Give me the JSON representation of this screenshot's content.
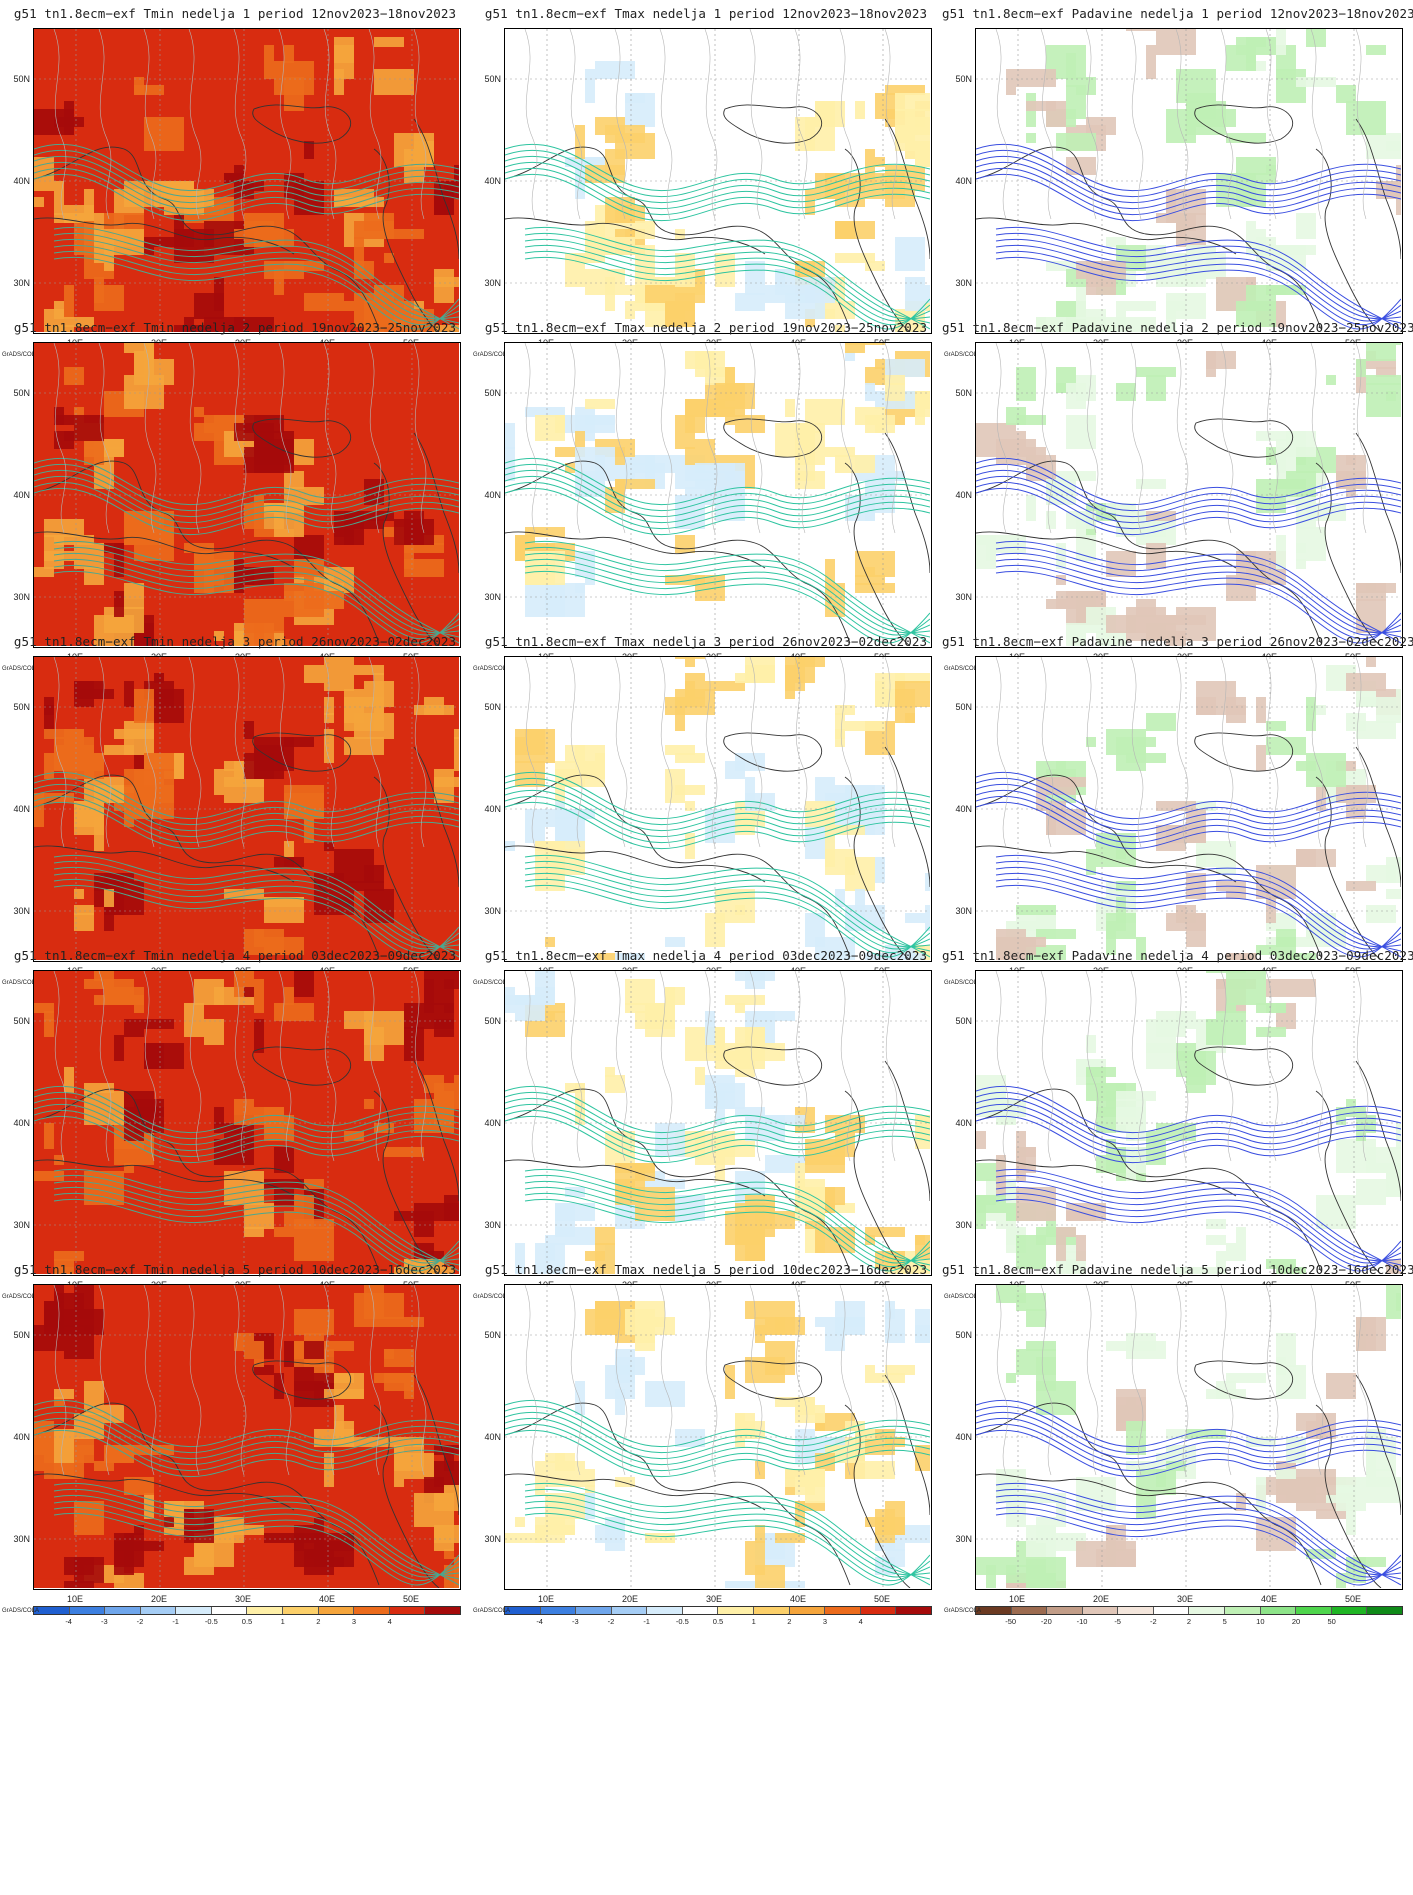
{
  "credit": "GrADS/COLA",
  "lat_labels": [
    "50N",
    "40N",
    "30N"
  ],
  "lon_labels": [
    "10E",
    "20E",
    "30E",
    "40E",
    "50E"
  ],
  "temp_scale": {
    "ticks": [
      "-4",
      "-3",
      "-2",
      "-1",
      "-0.5",
      "0.5",
      "1",
      "2",
      "3",
      "4"
    ],
    "colors": [
      "#1f5fd0",
      "#3c7fe0",
      "#6fa6ec",
      "#a5cdf5",
      "#d6ecfb",
      "#ffffff",
      "#fff0a8",
      "#fcd06a",
      "#f5a53c",
      "#ec6b1c",
      "#d82c10",
      "#a50a0a"
    ]
  },
  "precip_scale": {
    "ticks": [
      "-50",
      "-20",
      "-10",
      "-5",
      "-2",
      "2",
      "5",
      "10",
      "20",
      "50"
    ],
    "colors": [
      "#6b3a22",
      "#9c6b50",
      "#c29d88",
      "#e0c6b8",
      "#f4e6dc",
      "#ffffff",
      "#e6f8e2",
      "#bff0b5",
      "#8ee489",
      "#4ed54c",
      "#1fb524",
      "#0f8a18"
    ]
  },
  "panels": [
    {
      "row": 0,
      "col": 0,
      "type": "tmin",
      "title": "g51 tn1.8ecm−exf Tmin nedelja 1 period 12nov2023−18nov2023"
    },
    {
      "row": 0,
      "col": 1,
      "type": "tmax",
      "title": "g51 tn1.8ecm−exf Tmax nedelja 1 period 12nov2023−18nov2023"
    },
    {
      "row": 0,
      "col": 2,
      "type": "precip",
      "title": "g51 tn1.8ecm−exf Padavine nedelja 1 period 12nov2023−18nov2023"
    },
    {
      "row": 1,
      "col": 0,
      "type": "tmin",
      "title": "g51 tn1.8ecm−exf Tmin nedelja 2 period 19nov2023−25nov2023"
    },
    {
      "row": 1,
      "col": 1,
      "type": "tmax",
      "title": "g51 tn1.8ecm−exf Tmax nedelja 2 period 19nov2023−25nov2023"
    },
    {
      "row": 1,
      "col": 2,
      "type": "precip",
      "title": "g51 tn1.8ecm−exf Padavine nedelja 2 period 19nov2023−25nov2023"
    },
    {
      "row": 2,
      "col": 0,
      "type": "tmin",
      "title": "g51 tn1.8ecm−exf Tmin nedelja 3 period 26nov2023−02dec2023"
    },
    {
      "row": 2,
      "col": 1,
      "type": "tmax",
      "title": "g51 tn1.8ecm−exf Tmax nedelja 3 period 26nov2023−02dec2023"
    },
    {
      "row": 2,
      "col": 2,
      "type": "precip",
      "title": "g51 tn1.8ecm−exf Padavine nedelja 3 period 26nov2023−02dec2023"
    },
    {
      "row": 3,
      "col": 0,
      "type": "tmin",
      "title": "g51 tn1.8ecm−exf Tmin nedelja 4 period 03dec2023−09dec2023"
    },
    {
      "row": 3,
      "col": 1,
      "type": "tmax",
      "title": "g51 tn1.8ecm−exf Tmax nedelja 4 period 03dec2023−09dec2023"
    },
    {
      "row": 3,
      "col": 2,
      "type": "precip",
      "title": "g51 tn1.8ecm−exf Padavine nedelja 4 period 03dec2023−09dec2023"
    },
    {
      "row": 4,
      "col": 0,
      "type": "tmin",
      "title": "g51 tn1.8ecm−exf Tmin nedelja 5 period 10dec2023−16dec2023"
    },
    {
      "row": 4,
      "col": 1,
      "type": "tmax",
      "title": "g51 tn1.8ecm−exf Tmax nedelja 5 period 10dec2023−16dec2023"
    },
    {
      "row": 4,
      "col": 2,
      "type": "precip",
      "title": "g51 tn1.8ecm−exf Padavine nedelja 5 period 10dec2023−16dec2023"
    }
  ]
}
